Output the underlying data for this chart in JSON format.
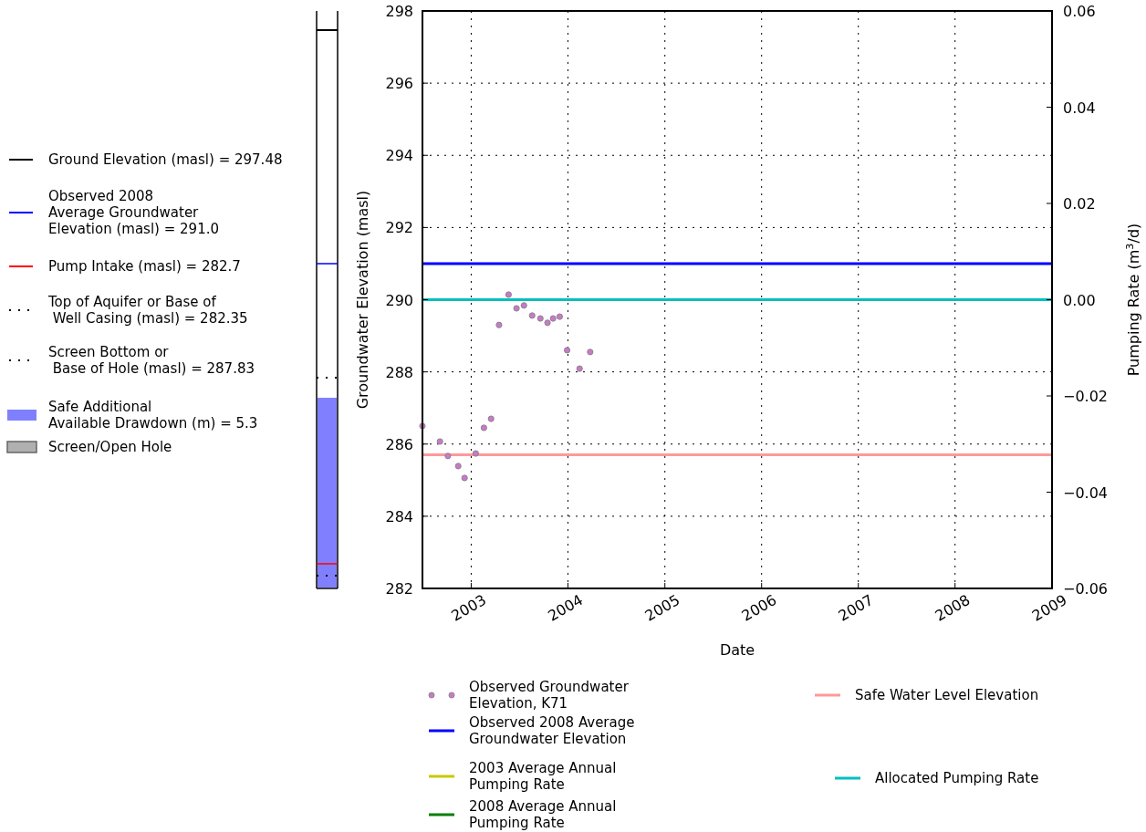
{
  "chart_data": [
    {
      "type": "other",
      "annotations": [
        "Ground Elevation (masl) = 297.48",
        "Observed 2008\nAverage Groundwater\nElevation (masl) = 291.0",
        "Pump Intake (masl) = 282.7",
        "Top of Aquifer or Base of\n Well Casing (masl) = 282.35",
        "Screen Bottom or\n Base of Hole (masl) = 287.83",
        "Safe Additional\nAvailable Drawdown (m) = 5.3",
        "Screen/Open Hole"
      ]
    },
    {
      "type": "scatter",
      "xlabel": "Date",
      "ylabel": "Groundwater Elevation (masl)",
      "y2label": "Pumping Rate (m$^{3}$/d)",
      "marker": "circle",
      "grid": true,
      "legend": "bottom",
      "xlim": [
        "2002-07-01",
        "2009-01-01"
      ],
      "xticks": [
        "2003",
        "2004",
        "2005",
        "2006",
        "2007",
        "2008",
        "2009"
      ],
      "ylim": [
        282,
        298
      ],
      "yticks": [
        282,
        284,
        286,
        288,
        290,
        292,
        294,
        296,
        298
      ],
      "y2lim": [
        -0.06,
        0.06
      ],
      "y2ticks": [
        {
          "value": -0.06,
          "label": "−0.06"
        },
        {
          "value": -0.04,
          "label": "−0.04"
        },
        {
          "value": -0.02,
          "label": "−0.02"
        },
        {
          "value": 0,
          "label": "0.00"
        },
        {
          "value": 0.02,
          "label": "0.02"
        },
        {
          "value": 0.04,
          "label": "0.04"
        },
        {
          "value": 0.06,
          "label": "0.06"
        }
      ],
      "x": [
        "2002-07-01",
        "2002-09-05",
        "2002-10-05",
        "2002-11-13",
        "2002-12-07",
        "2003-01-18",
        "2003-02-18",
        "2003-03-17",
        "2003-04-16",
        "2003-05-22",
        "2003-06-21",
        "2003-07-19",
        "2003-08-19",
        "2003-09-19",
        "2003-10-16",
        "2003-11-06",
        "2003-12-01",
        "2003-12-29",
        "2004-02-14",
        "2004-03-25"
      ],
      "series": [
        {
          "name": "Observed Groundwater\nElevation, K71",
          "color": "#cc77cc",
          "values": [
            286.5,
            286.07,
            285.67,
            285.39,
            285.06,
            285.74,
            286.45,
            286.7,
            289.3,
            290.14,
            289.76,
            289.84,
            289.56,
            289.48,
            289.36,
            289.48,
            289.53,
            288.6,
            288.09,
            288.55
          ]
        },
        {
          "name": "2003 Average Annual\nPumping Rate",
          "type": "line",
          "color": "#c8c800",
          "values": [
            null,
            null,
            null,
            null,
            null,
            null,
            null,
            null,
            null,
            null,
            null,
            null,
            null,
            null,
            null,
            null,
            null,
            null,
            null,
            null
          ]
        },
        {
          "name": "2008 Average Annual\nPumping Rate",
          "type": "line",
          "color": "#008000",
          "values": [
            null,
            null,
            null,
            null,
            null,
            null,
            null,
            null,
            null,
            null,
            null,
            null,
            null,
            null,
            null,
            null,
            null,
            null,
            null,
            null
          ]
        }
      ],
      "ref_lines": [
        {
          "axis": "y",
          "value": 291.0,
          "label": "Observed 2008 Average\nGroundwater Elevation",
          "color": "#0000ff"
        },
        {
          "axis": "y",
          "value": 285.7,
          "label": "Safe Water Level Elevation",
          "color": "#ff9999"
        },
        {
          "axis": "y2",
          "value": 0,
          "label": "Allocated Pumping Rate",
          "color": "#00bfbf"
        }
      ]
    }
  ]
}
